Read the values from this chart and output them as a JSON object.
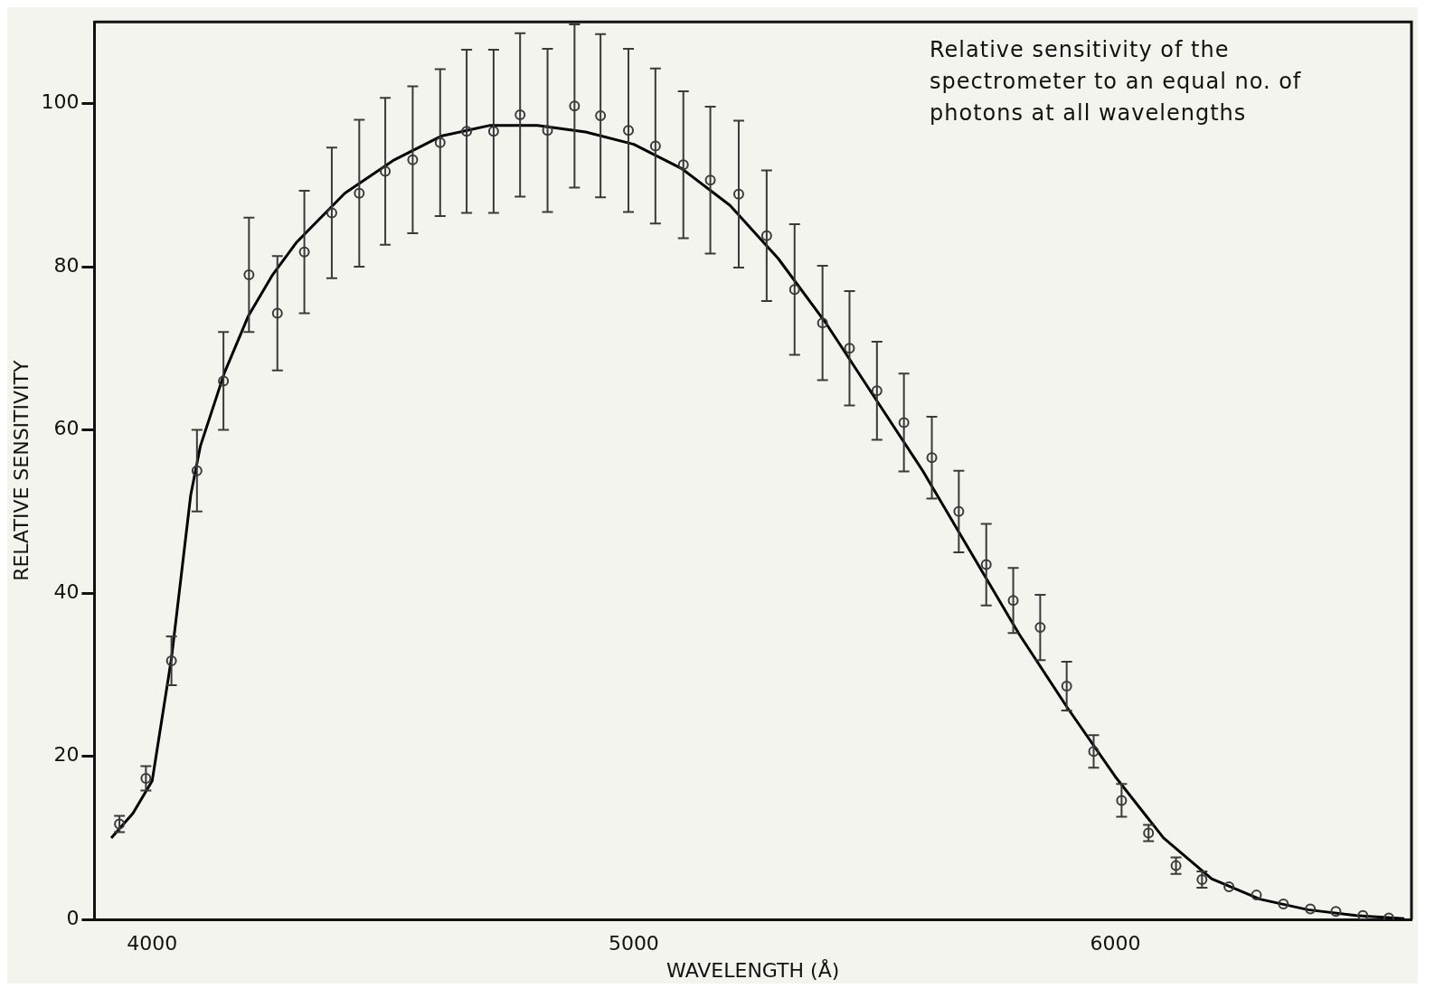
{
  "chart_data": {
    "type": "scatter",
    "xlabel": "WAVELENGTH (Å)",
    "ylabel": "RELATIVE SENSITIVITY",
    "annotations": [
      "Relative sensitivity of the spectrometer to an equal no. of photons at all wavelengths"
    ],
    "xlim": [
      3880,
      6615
    ],
    "xticks": [
      4000,
      5000,
      6000
    ],
    "ylim": [
      0,
      110
    ],
    "yticks": [
      0,
      20,
      40,
      60,
      80,
      100
    ],
    "grid": false,
    "legend": false,
    "series": [
      {
        "color": "#3a3a3a",
        "marker": "circle",
        "x": [
          3932,
          3987,
          4040,
          4093,
          4148,
          4201,
          4260,
          4316,
          4373,
          4430,
          4484,
          4541,
          4598,
          4653,
          4709,
          4764,
          4821,
          4877,
          4931,
          4989,
          5045,
          5103,
          5159,
          5218,
          5276,
          5334,
          5392,
          5448,
          5505,
          5561,
          5619,
          5675,
          5732,
          5788,
          5844,
          5899,
          5955,
          6013,
          6069,
          6126,
          6180,
          6236,
          6293,
          6349,
          6405,
          6458,
          6514,
          6568
        ],
        "values": [
          11.7,
          17.3,
          31.7,
          55,
          66,
          79,
          74.3,
          81.8,
          86.6,
          89,
          91.7,
          93.1,
          95.2,
          96.6,
          96.6,
          98.6,
          96.7,
          99.7,
          98.5,
          96.7,
          94.8,
          92.5,
          90.6,
          88.9,
          83.8,
          77.2,
          73.1,
          70,
          64.8,
          60.9,
          56.6,
          50,
          43.5,
          39.1,
          35.8,
          28.6,
          20.6,
          14.6,
          10.6,
          6.6,
          4.9,
          4,
          3,
          1.9,
          1.3,
          1,
          0.5,
          0.2
        ],
        "errors": [
          1,
          1.5,
          3,
          5,
          6,
          7,
          7,
          7.5,
          8,
          9,
          9,
          9,
          9,
          10,
          10,
          10,
          10,
          10,
          10,
          10,
          9.5,
          9,
          9,
          9,
          8,
          8,
          7,
          7,
          6,
          6,
          5,
          5,
          5,
          4,
          4,
          3,
          2,
          2,
          1,
          1,
          1,
          null,
          null,
          null,
          null,
          null,
          null,
          null
        ]
      },
      {
        "type": "line",
        "color": "#000000",
        "marker": "none",
        "line_style": "solid",
        "x": [
          3915,
          3960,
          4000,
          4040,
          4060,
          4080,
          4100,
          4150,
          4200,
          4250,
          4300,
          4400,
          4500,
          4600,
          4700,
          4800,
          4900,
          5000,
          5100,
          5200,
          5300,
          5400,
          5500,
          5600,
          5700,
          5800,
          5900,
          6000,
          6100,
          6200,
          6300,
          6400,
          6500,
          6600
        ],
        "values": [
          10,
          13,
          17,
          32,
          42,
          52,
          58,
          67,
          74,
          79,
          83,
          89,
          93,
          96,
          97.3,
          97.3,
          96.5,
          95,
          92,
          87.5,
          81,
          73,
          64,
          55,
          45,
          35,
          26,
          17.5,
          10,
          5,
          2.5,
          1.2,
          0.5,
          0.1
        ]
      }
    ]
  }
}
